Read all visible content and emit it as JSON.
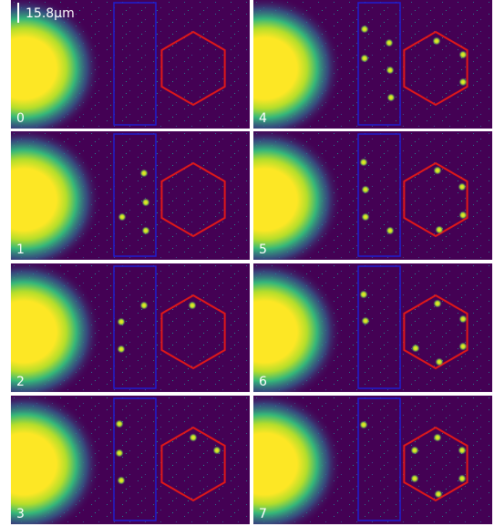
{
  "scale_bar": {
    "label": "15.8μm"
  },
  "panels": [
    {
      "label": "0"
    },
    {
      "label": "1"
    },
    {
      "label": "2"
    },
    {
      "label": "3"
    },
    {
      "label": "4"
    },
    {
      "label": "5"
    },
    {
      "label": "6"
    },
    {
      "label": "7"
    }
  ]
}
